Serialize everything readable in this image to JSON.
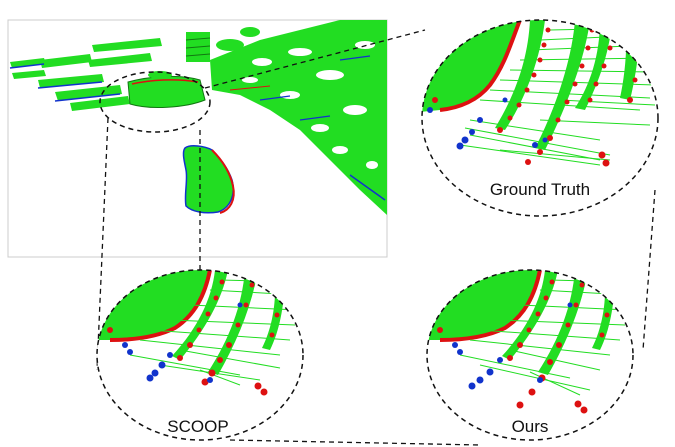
{
  "figure": {
    "labels": {
      "ground_truth": "Ground Truth",
      "scoop": "SCOOP",
      "ours": "Ours"
    },
    "colors": {
      "flow_arrows": "#22dd22",
      "point_cloud_red": "#dd1111",
      "point_cloud_blue": "#1133cc",
      "dashed_outline": "#111111",
      "panel_border": "#cccccc"
    }
  }
}
